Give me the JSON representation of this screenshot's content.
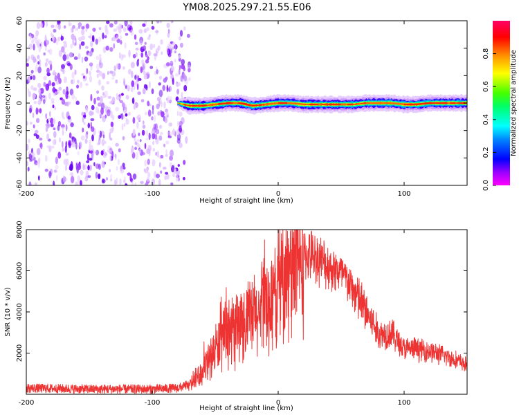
{
  "title": "YM08.2025.297.21.55.E06",
  "chart_data": [
    {
      "type": "heatmap",
      "xlabel": "Height of straight line (km)",
      "ylabel": "Frequency (Hz)",
      "xlim": [
        -200,
        150
      ],
      "ylim": [
        -60,
        60
      ],
      "xticks": [
        -200,
        -100,
        0,
        100
      ],
      "xtick_labels": [
        "-200",
        "-100",
        "0",
        "100"
      ],
      "yticks": [
        -60,
        -40,
        -20,
        0,
        20,
        40,
        60
      ],
      "ytick_labels": [
        "-60",
        "-40",
        "-20",
        "0",
        "20",
        "40",
        "60"
      ],
      "noise_region_km": [
        -200,
        -78
      ],
      "ridge": {
        "x": [
          -80,
          -70,
          -60,
          -50,
          -40,
          -30,
          -20,
          -10,
          0,
          10,
          20,
          30,
          40,
          50,
          60,
          70,
          80,
          90,
          100,
          110,
          120,
          130,
          140,
          150
        ],
        "freq": [
          0,
          -2,
          -2,
          -1,
          0,
          0,
          -2,
          -1,
          0,
          0,
          -1,
          -1,
          -1,
          -1,
          -1,
          0,
          0,
          0,
          -1,
          -1,
          0,
          0,
          0,
          0
        ]
      },
      "colorbar": {
        "label": "Normalized spectral amplitude",
        "range": [
          0,
          1
        ],
        "ticks": [
          0.0,
          0.2,
          0.4,
          0.6,
          0.8
        ],
        "tick_labels": [
          "0.0",
          "0.2",
          "0.4",
          "0.6",
          "0.8"
        ]
      }
    },
    {
      "type": "line",
      "xlabel": "Height of straight line (km)",
      "ylabel": "SNR (10 * v/v)",
      "xlim": [
        -200,
        150
      ],
      "ylim": [
        0,
        8000
      ],
      "xticks": [
        -200,
        -100,
        0,
        100
      ],
      "xtick_labels": [
        "-200",
        "-100",
        "0",
        "100"
      ],
      "yticks": [
        2000,
        4000,
        6000,
        8000
      ],
      "ytick_labels": [
        "2000",
        "4000",
        "6000",
        "8000"
      ],
      "color": "#ee3333",
      "series": [
        {
          "name": "SNR",
          "x": [
            -200,
            -150,
            -100,
            -80,
            -70,
            -60,
            -50,
            -40,
            -30,
            -20,
            -10,
            0,
            10,
            20,
            30,
            40,
            50,
            60,
            70,
            80,
            90,
            100,
            110,
            120,
            130,
            140,
            150
          ],
          "values": [
            300,
            250,
            250,
            300,
            450,
            1100,
            2200,
            2900,
            3300,
            3700,
            4200,
            5000,
            5900,
            6800,
            6700,
            6200,
            5900,
            5000,
            4000,
            2900,
            3000,
            2200,
            2200,
            2100,
            1900,
            1700,
            1400
          ]
        }
      ]
    }
  ]
}
